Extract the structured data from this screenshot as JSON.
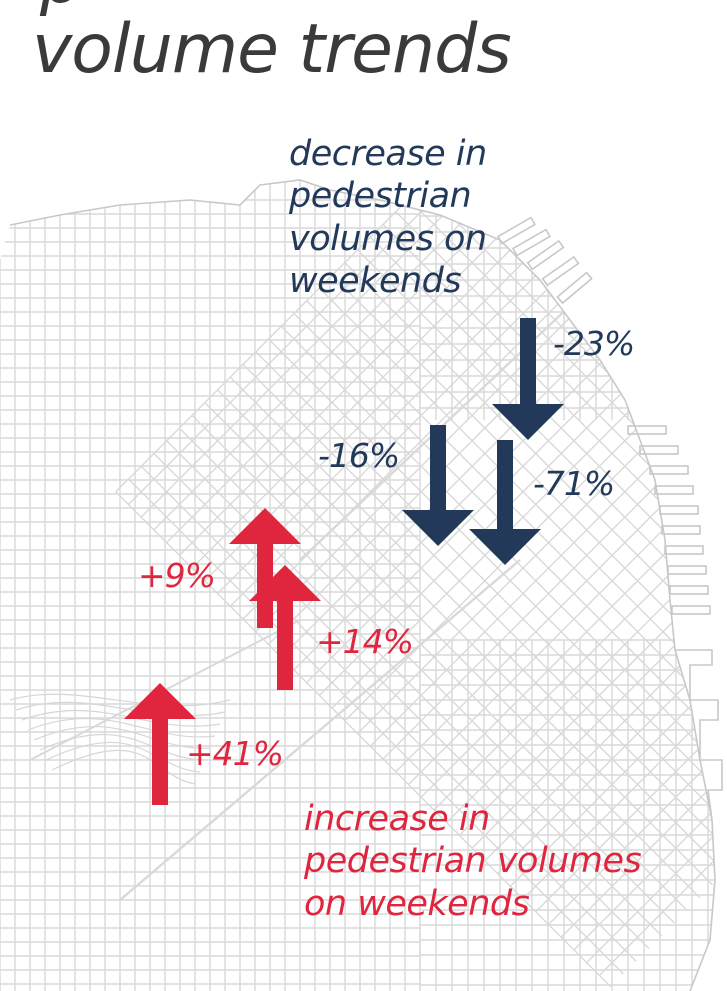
{
  "title": "volume trends",
  "title_fragment": "p",
  "legend": {
    "decrease_lines": [
      "decrease in",
      "pedestrian",
      "volumes on",
      "weekends"
    ],
    "increase_lines": [
      "increase in",
      "pedestrian volumes",
      "on weekends"
    ]
  },
  "colors": {
    "decrease": "#22395a",
    "increase": "#e0253f",
    "streets": "#d9d9d9",
    "text": "#3a3a3a"
  },
  "markers": [
    {
      "id": "m1",
      "direction": "down",
      "change": "-23%"
    },
    {
      "id": "m2",
      "direction": "down",
      "change": "-16%"
    },
    {
      "id": "m3",
      "direction": "down",
      "change": "-71%"
    },
    {
      "id": "m4",
      "direction": "up",
      "change": "+9%"
    },
    {
      "id": "m5",
      "direction": "up",
      "change": "+14%"
    },
    {
      "id": "m6",
      "direction": "up",
      "change": "+41%"
    }
  ]
}
